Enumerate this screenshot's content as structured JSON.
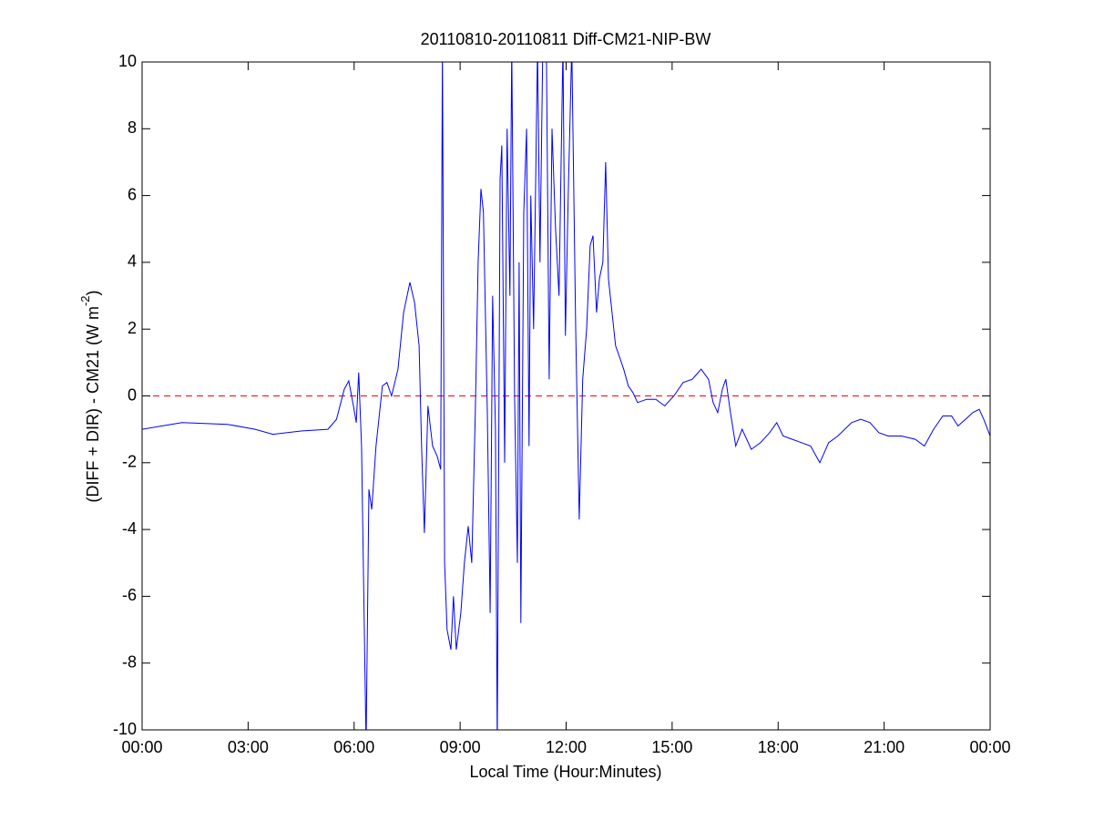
{
  "chart_data": {
    "type": "line",
    "title": "20110810-20110811 Diff-CM21-NIP-BW",
    "xlabel": "Local Time (Hour:Minutes)",
    "ylabel_parts": [
      "(DIFF + DIR) - CM21 (W m",
      "-2",
      ")"
    ],
    "xlim": [
      0,
      24
    ],
    "xticks": [
      {
        "value": 0,
        "label": "00:00"
      },
      {
        "value": 3,
        "label": "03:00"
      },
      {
        "value": 6,
        "label": "06:00"
      },
      {
        "value": 9,
        "label": "09:00"
      },
      {
        "value": 12,
        "label": "12:00"
      },
      {
        "value": 15,
        "label": "15:00"
      },
      {
        "value": 18,
        "label": "18:00"
      },
      {
        "value": 21,
        "label": "21:00"
      },
      {
        "value": 24,
        "label": "00:00"
      }
    ],
    "ylim": [
      -10,
      10
    ],
    "yticks": [
      -10,
      -8,
      -6,
      -4,
      -2,
      0,
      2,
      4,
      6,
      8,
      10
    ],
    "hline": 0,
    "hline_color": "#ff0000",
    "x": [
      0,
      1.13,
      2.42,
      3.2,
      3.7,
      4.5,
      5.26,
      5.5,
      5.72,
      5.85,
      5.98,
      6.06,
      6.13,
      6.21,
      6.34,
      6.42,
      6.5,
      6.62,
      6.8,
      6.93,
      7.06,
      7.24,
      7.4,
      7.58,
      7.71,
      7.84,
      7.91,
      7.99,
      8.09,
      8.22,
      8.35,
      8.45,
      8.5,
      8.56,
      8.63,
      8.74,
      8.81,
      8.89,
      9.02,
      9.12,
      9.23,
      9.33,
      9.43,
      9.51,
      9.59,
      9.66,
      9.77,
      9.85,
      9.92,
      10.0,
      10.05,
      10.13,
      10.18,
      10.26,
      10.33,
      10.41,
      10.46,
      10.54,
      10.62,
      10.67,
      10.72,
      10.8,
      10.88,
      10.95,
      11.0,
      11.08,
      11.19,
      11.26,
      11.34,
      11.44,
      11.52,
      11.6,
      11.7,
      11.8,
      11.91,
      11.98,
      12.06,
      12.16,
      12.27,
      12.37,
      12.47,
      12.58,
      12.68,
      12.76,
      12.86,
      12.94,
      13.04,
      13.12,
      13.2,
      13.3,
      13.4,
      13.5,
      13.63,
      13.76,
      13.89,
      14.02,
      14.28,
      14.54,
      14.79,
      15.05,
      15.31,
      15.57,
      15.82,
      16.03,
      16.16,
      16.29,
      16.42,
      16.52,
      16.65,
      16.8,
      16.98,
      17.24,
      17.5,
      17.76,
      17.96,
      18.14,
      18.4,
      18.66,
      18.92,
      19.18,
      19.43,
      19.69,
      20.08,
      20.34,
      20.6,
      20.85,
      21.11,
      21.49,
      21.88,
      22.14,
      22.4,
      22.66,
      22.91,
      23.09,
      23.3,
      23.51,
      23.69,
      23.82,
      24.0
    ],
    "series": [
      {
        "color": "#0000ff",
        "values": [
          -1.0,
          -0.8,
          -0.85,
          -1.0,
          -1.15,
          -1.05,
          -1.0,
          -0.7,
          0.2,
          0.45,
          -0.3,
          -0.8,
          0.7,
          -1.5,
          -10.5,
          -2.8,
          -3.4,
          -1.5,
          0.3,
          0.4,
          0.0,
          0.8,
          2.5,
          3.4,
          2.8,
          1.5,
          -1.5,
          -4.1,
          -0.3,
          -1.5,
          -1.8,
          -2.2,
          10.5,
          -5.0,
          -7.0,
          -7.6,
          -6.0,
          -7.6,
          -6.5,
          -5.0,
          -3.9,
          -5.0,
          -0.5,
          4.0,
          6.2,
          5.5,
          -0.5,
          -6.5,
          3.0,
          -1.0,
          -10.5,
          6.5,
          7.5,
          -2.0,
          8.0,
          3.0,
          10.5,
          0.0,
          -5.0,
          4.0,
          -6.8,
          5.5,
          8.0,
          -1.5,
          6.0,
          2.0,
          10.5,
          4.0,
          10.5,
          10.5,
          0.5,
          8.0,
          5.0,
          3.0,
          10.5,
          1.8,
          6.0,
          10.5,
          2.0,
          -3.7,
          0.5,
          2.0,
          4.5,
          4.8,
          2.5,
          3.5,
          4.0,
          7.0,
          3.5,
          2.5,
          1.5,
          1.2,
          0.8,
          0.3,
          0.1,
          -0.2,
          -0.1,
          -0.1,
          -0.3,
          0.0,
          0.4,
          0.5,
          0.8,
          0.5,
          -0.2,
          -0.5,
          0.2,
          0.5,
          -0.5,
          -1.5,
          -1.0,
          -1.6,
          -1.4,
          -1.1,
          -0.8,
          -1.2,
          -1.3,
          -1.4,
          -1.5,
          -2.0,
          -1.4,
          -1.2,
          -0.8,
          -0.7,
          -0.8,
          -1.1,
          -1.2,
          -1.2,
          -1.3,
          -1.5,
          -1.0,
          -0.6,
          -0.6,
          -0.9,
          -0.7,
          -0.5,
          -0.4,
          -0.7,
          -1.2
        ]
      }
    ]
  }
}
